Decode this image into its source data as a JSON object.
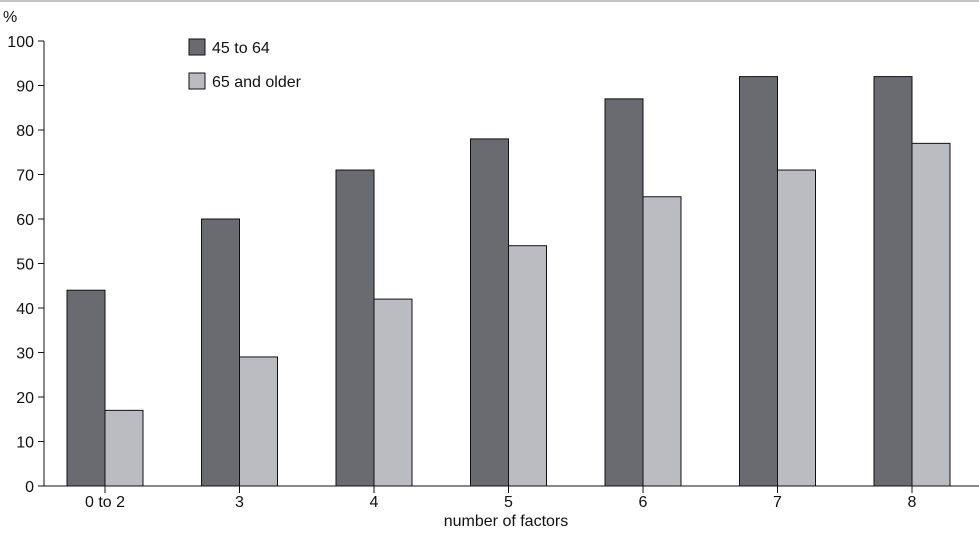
{
  "chart_data": {
    "type": "bar",
    "ylabel": "%",
    "xlabel": "number of factors",
    "categories": [
      "0 to 2",
      "3",
      "4",
      "5",
      "6",
      "7",
      "8"
    ],
    "series": [
      {
        "name": "45 to 64",
        "color": "#6a6b70",
        "values": [
          44,
          60,
          71,
          78,
          87,
          92,
          92
        ]
      },
      {
        "name": "65 and older",
        "color": "#bbbcc1",
        "values": [
          17,
          29,
          42,
          54,
          65,
          71,
          77
        ]
      }
    ],
    "ylim": [
      0,
      100
    ],
    "yticks": [
      0,
      10,
      20,
      30,
      40,
      50,
      60,
      70,
      80,
      90,
      100
    ],
    "grid": false,
    "legend": "top-left"
  }
}
